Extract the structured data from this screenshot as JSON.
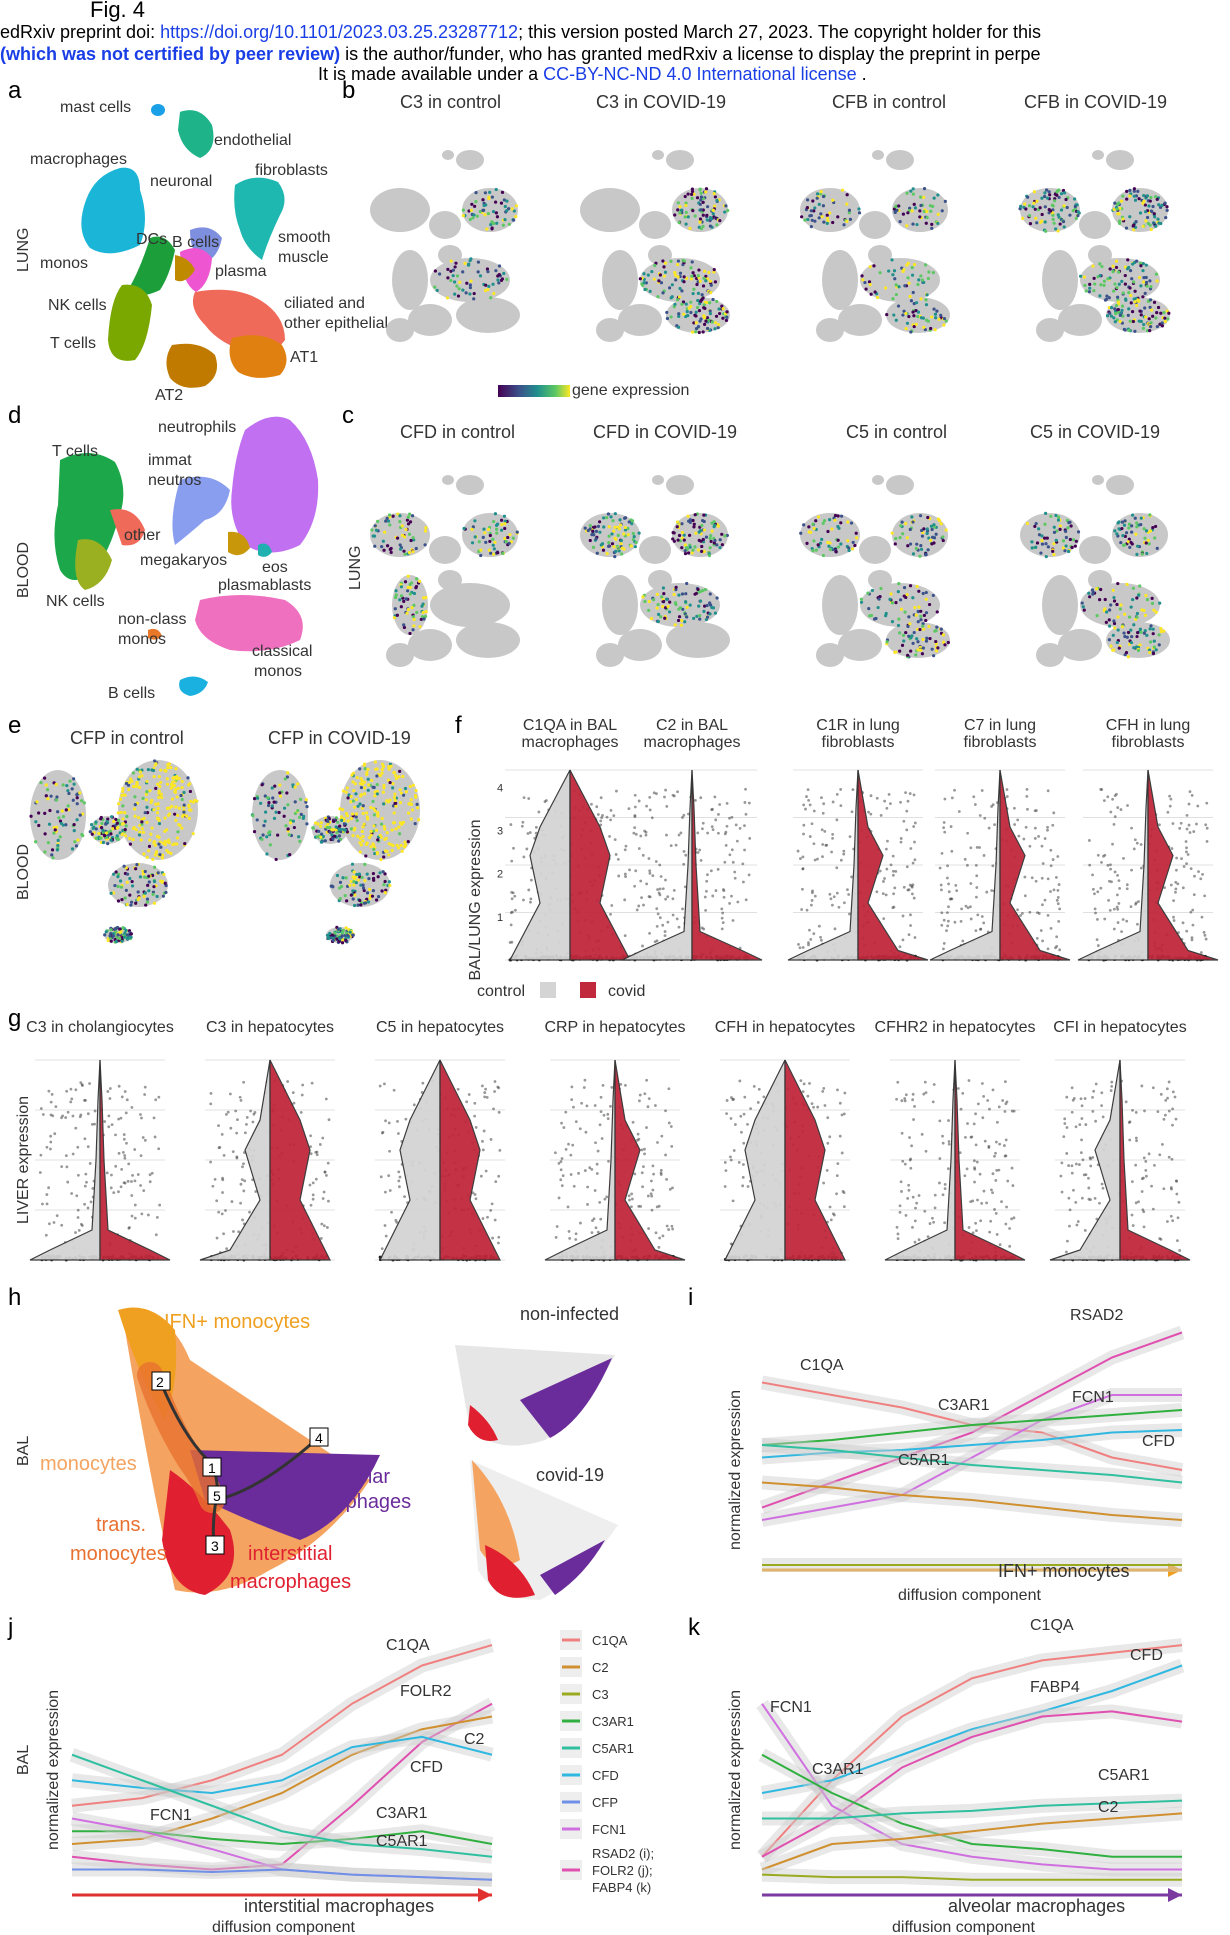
{
  "header": {
    "fig_label": "Fig. 4",
    "line1_pre": "edRxiv preprint doi: ",
    "doi_link": "https://doi.org/10.1101/2023.03.25.23287712",
    "line1_post": "; this version posted March 27, 2023. The copyright holder for this",
    "line2_bold": "(which was not certified by peer review)",
    "line2_post": " is the author/funder, who has granted medRxiv a license to display the preprint in perpe",
    "line3_pre": "It is made available under a ",
    "license_link": "CC-BY-NC-ND 4.0 International license",
    "line3_post": " ."
  },
  "panels": {
    "a": "a",
    "b": "b",
    "c": "c",
    "d": "d",
    "e": "e",
    "f": "f",
    "g": "g",
    "h": "h",
    "i": "i",
    "j": "j",
    "k": "k"
  },
  "side_labels": {
    "lung_a": "LUNG",
    "lung_c": "LUNG",
    "blood_d": "BLOOD",
    "blood_e": "BLOOD",
    "bal_h": "BAL",
    "bal_j": "BAL"
  },
  "panel_a": {
    "labels": [
      "mast cells",
      "endothelial",
      "macrophages",
      "fibroblasts",
      "neuronal",
      "DCs",
      "B cells",
      "smooth",
      "muscle",
      "monos",
      "plasma",
      "NK cells",
      "ciliated and",
      "other epithelial",
      "T cells",
      "AT1",
      "AT2"
    ],
    "colors": {
      "mast": "#1aa0e6",
      "endo": "#1fb38a",
      "macro": "#1bb5d8",
      "fibro": "#1fb8b0",
      "neuronal": "#7f8fe0",
      "dcs": "#1c9e3a",
      "bcells": "#c08a00",
      "smooth": "#e060c0",
      "plasma": "#ee55d0",
      "nk": "#a080e0",
      "epi": "#f06a5a",
      "tcells": "#7aa800",
      "at1": "#e08010",
      "at2": "#c07a00"
    }
  },
  "panel_b": {
    "titles": [
      "C3 in control",
      "C3 in COVID-19",
      "CFB in control",
      "CFB in COVID-19"
    ],
    "colorbar_label": "gene expression"
  },
  "panel_c": {
    "titles": [
      "CFD in control",
      "CFD in COVID-19",
      "C5 in control",
      "C5 in COVID-19"
    ]
  },
  "panel_d": {
    "labels": [
      "neutrophils",
      "T cells",
      "immat",
      "neutros",
      "other",
      "megakaryos",
      "eos",
      "plasmablasts",
      "NK cells",
      "non-class",
      "monos",
      "classical",
      "monos",
      "B cells"
    ]
  },
  "panel_e": {
    "titles": [
      "CFP in control",
      "CFP in COVID-19"
    ]
  },
  "panel_f": {
    "titles": [
      [
        "C1QA in BAL",
        "macrophages"
      ],
      [
        "C2 in BAL",
        "macrophages"
      ],
      [
        "C1R in lung",
        "fibroblasts"
      ],
      [
        "C7 in lung",
        "fibroblasts"
      ],
      [
        "CFH in lung",
        "fibroblasts"
      ]
    ],
    "ylabel": "BAL/LUNG expression",
    "legend": [
      "control",
      "covid"
    ],
    "colors": {
      "control": "#d4d4d4",
      "covid": "#c0283c"
    }
  },
  "panel_g": {
    "titles": [
      "C3 in cholangiocytes",
      "C3 in hepatocytes",
      "C5 in hepatocytes",
      "CRP in hepatocytes",
      "CFH in hepatocytes",
      "CFHR2 in hepatocytes",
      "CFI in hepatocytes"
    ],
    "ylabel": "LIVER expression"
  },
  "panel_h": {
    "labels": [
      "IFN+ monocytes",
      "monocytes",
      "trans.",
      "monocytes",
      "alveolar",
      "macrophages",
      "interstitial",
      "macrophages"
    ],
    "nodes": [
      "1",
      "2",
      "3",
      "4",
      "5"
    ],
    "inset_titles": [
      "non-infected",
      "covid-19"
    ]
  },
  "panel_i": {
    "labels": [
      "RSAD2",
      "C1QA",
      "FCN1",
      "C3AR1",
      "CFD",
      "C5AR1"
    ],
    "ylabel": "normalized expression",
    "axis": "IFN+ monocytes",
    "xlabel": "diffusion component"
  },
  "panel_j": {
    "labels": [
      "C1QA",
      "FOLR2",
      "C2",
      "CFD",
      "FCN1",
      "C3AR1",
      "C5AR1"
    ],
    "ylabel": "normalized expression",
    "axis": "interstitial macrophages",
    "xlabel": "diffusion component"
  },
  "panel_k": {
    "labels": [
      "C1QA",
      "CFD",
      "FABP4",
      "FCN1",
      "C3AR1",
      "C5AR1",
      "C2"
    ],
    "ylabel": "normalized expression",
    "axis": "alveolar macrophages",
    "xlabel": "diffusion component"
  },
  "legend_jk": {
    "entries": [
      "C1QA",
      "C2",
      "C3",
      "C3AR1",
      "C5AR1",
      "CFD",
      "CFP",
      "FCN1"
    ],
    "multi": [
      "RSAD2 (i);",
      "FOLR2 (j);",
      "FABP4 (k)"
    ],
    "colors": [
      "#f08080",
      "#d09030",
      "#9aaa20",
      "#30b040",
      "#30c0a0",
      "#30b8e0",
      "#7090e8",
      "#d070e0",
      "#e050b0"
    ]
  },
  "colors": {
    "umap_grey": "#c8c8c8",
    "viridis": [
      "#440154",
      "#3b528b",
      "#21908d",
      "#5dc863",
      "#fde725"
    ],
    "h_monocytes": "#f4a460",
    "h_ifn": "#f0a020",
    "h_trans": "#e87030",
    "h_interstitial": "#e02030",
    "h_alveolar": "#6a2c9a",
    "trend_i": "#f0a020",
    "trend_j": "#e03030",
    "trend_k": "#7a3aa0"
  }
}
